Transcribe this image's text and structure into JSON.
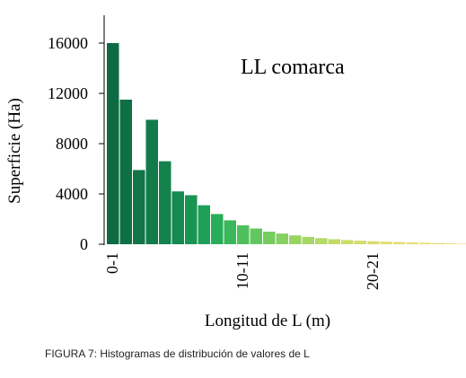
{
  "chart_data": {
    "type": "bar",
    "title": "LL comarca",
    "xlabel": "Longitud de L (m)",
    "ylabel": "Superficie (Ha)",
    "ylim": [
      0,
      18000
    ],
    "yticks": [
      0,
      4000,
      8000,
      12000,
      16000
    ],
    "tick_labels": [
      "0-1",
      "10-11",
      "20-21"
    ],
    "categories": [
      "0-1",
      "1-2",
      "2-3",
      "3-4",
      "4-5",
      "5-6",
      "6-7",
      "7-8",
      "8-9",
      "9-10",
      "10-11",
      "11-12",
      "12-13",
      "13-14",
      "14-15",
      "15-16",
      "16-17",
      "17-18",
      "18-19",
      "19-20",
      "20-21",
      "21-22",
      "22-23",
      "23-24",
      "24-25",
      "25-26",
      "26-27",
      "27-28"
    ],
    "values": [
      16000,
      11500,
      5900,
      9900,
      6600,
      4200,
      3900,
      3100,
      2400,
      1900,
      1500,
      1250,
      1000,
      850,
      700,
      580,
      480,
      400,
      330,
      280,
      240,
      200,
      170,
      140,
      110,
      85,
      60,
      40
    ],
    "colors": [
      "#0e6a43",
      "#0f6f45",
      "#117548",
      "#127b4a",
      "#14824d",
      "#158a50",
      "#199453",
      "#1fa057",
      "#2aad58",
      "#3ab75a",
      "#4ec05c",
      "#62c75e",
      "#76cc60",
      "#88d062",
      "#98d464",
      "#a7d766",
      "#b5da67",
      "#c1dc68",
      "#cbdd69",
      "#d3dd6a",
      "#d9dd6b",
      "#dedd6c",
      "#e2dc6d",
      "#e4db6e",
      "#e6da6f",
      "#e7d970",
      "#e8d870",
      "#e9d771"
    ]
  },
  "caption": "FIGURA 7: Histogramas de distribución de valores de L"
}
